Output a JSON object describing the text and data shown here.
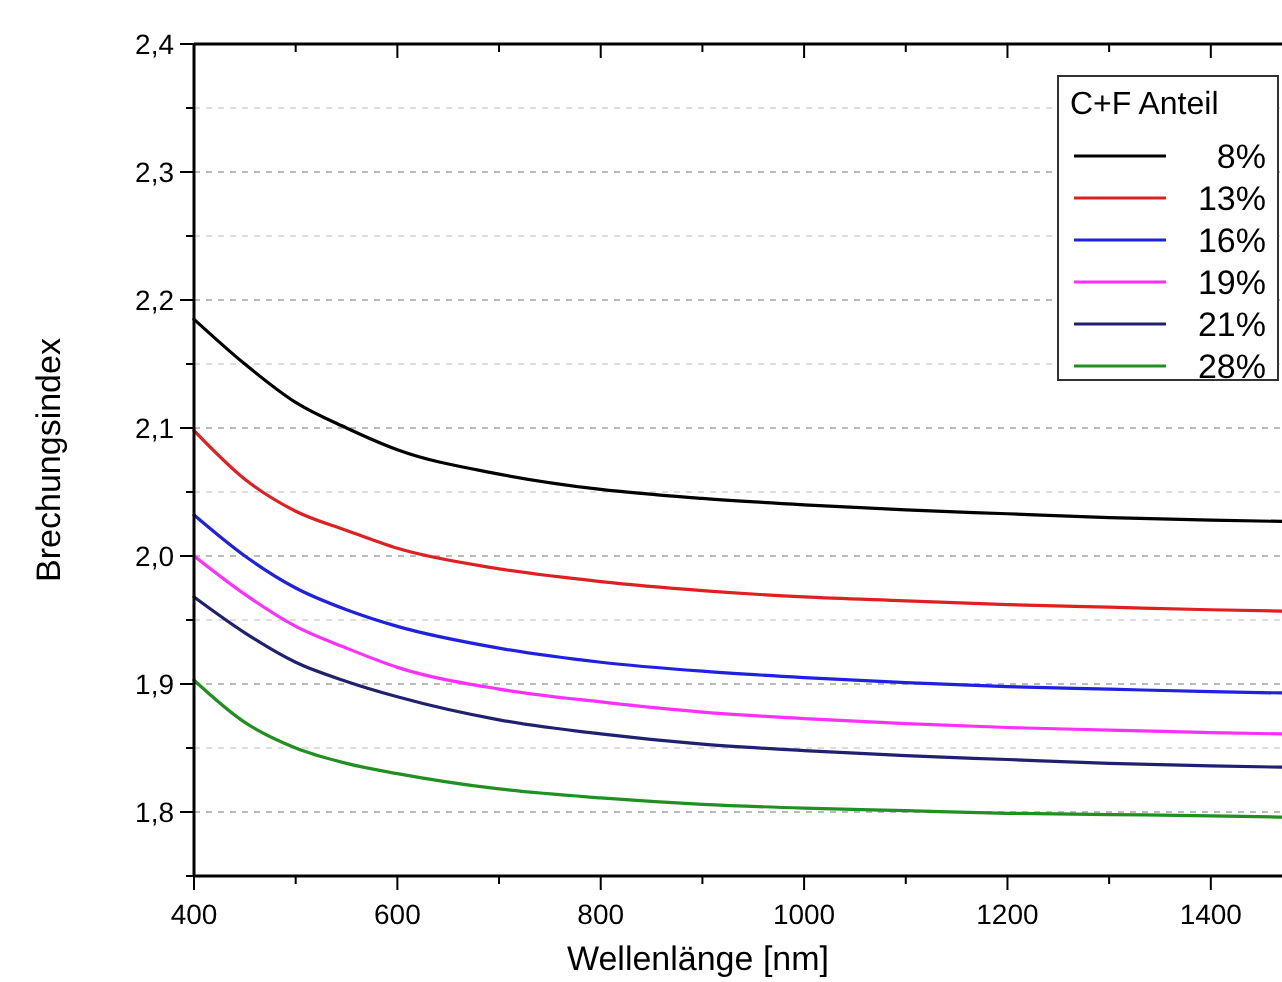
{
  "chart_data": {
    "type": "line",
    "xlabel": "Wellenlänge [nm]",
    "ylabel": "Brechungsindex",
    "legend_title": "C+F Anteil",
    "legend": "top right",
    "grid": "y",
    "line_style": "solid",
    "x": [
      400,
      450,
      500,
      550,
      600,
      700,
      800,
      900,
      1000,
      1100,
      1200,
      1300,
      1400,
      1470
    ],
    "xlim": [
      400,
      1470
    ],
    "xticks": [
      400,
      {
        "value": 500,
        "label": null
      },
      600,
      {
        "value": 700,
        "label": null
      },
      800,
      {
        "value": 900,
        "label": null
      },
      1000,
      {
        "value": 1100,
        "label": null
      },
      1200,
      {
        "value": 1300,
        "label": null
      },
      1400
    ],
    "ylim": [
      1.75,
      2.4
    ],
    "yticks": [
      {
        "value": 1.75,
        "label": null
      },
      {
        "value": 1.8,
        "label": "1,8"
      },
      {
        "value": 1.85,
        "label": null
      },
      {
        "value": 1.9,
        "label": "1,9"
      },
      {
        "value": 1.95,
        "label": null
      },
      {
        "value": 2.0,
        "label": "2,0"
      },
      {
        "value": 2.05,
        "label": null
      },
      {
        "value": 2.1,
        "label": "2,1"
      },
      {
        "value": 2.15,
        "label": null
      },
      {
        "value": 2.2,
        "label": "2,2"
      },
      {
        "value": 2.25,
        "label": null
      },
      {
        "value": 2.3,
        "label": "2,3"
      },
      {
        "value": 2.35,
        "label": null
      },
      {
        "value": 2.4,
        "label": "2,4"
      }
    ],
    "series": [
      {
        "name": "8%",
        "color": "#000000",
        "values": [
          2.185,
          2.15,
          2.12,
          2.1,
          2.083,
          2.064,
          2.052,
          2.045,
          2.04,
          2.036,
          2.033,
          2.03,
          2.028,
          2.027
        ]
      },
      {
        "name": "13%",
        "color": "#e02020",
        "values": [
          2.098,
          2.06,
          2.035,
          2.02,
          2.006,
          1.99,
          1.98,
          1.973,
          1.968,
          1.965,
          1.962,
          1.96,
          1.958,
          1.957
        ]
      },
      {
        "name": "16%",
        "color": "#2020e0",
        "values": [
          2.032,
          2.0,
          1.975,
          1.958,
          1.945,
          1.928,
          1.917,
          1.91,
          1.905,
          1.901,
          1.898,
          1.896,
          1.894,
          1.893
        ]
      },
      {
        "name": "19%",
        "color": "#ff30ff",
        "values": [
          2.0,
          1.97,
          1.945,
          1.928,
          1.913,
          1.896,
          1.886,
          1.878,
          1.873,
          1.869,
          1.866,
          1.864,
          1.862,
          1.861
        ]
      },
      {
        "name": "21%",
        "color": "#202070",
        "values": [
          1.968,
          1.94,
          1.917,
          1.902,
          1.89,
          1.872,
          1.861,
          1.853,
          1.848,
          1.844,
          1.841,
          1.838,
          1.836,
          1.835
        ]
      },
      {
        "name": "28%",
        "color": "#209020",
        "values": [
          1.903,
          1.87,
          1.85,
          1.838,
          1.83,
          1.818,
          1.811,
          1.806,
          1.803,
          1.801,
          1.799,
          1.798,
          1.797,
          1.796
        ]
      }
    ]
  }
}
